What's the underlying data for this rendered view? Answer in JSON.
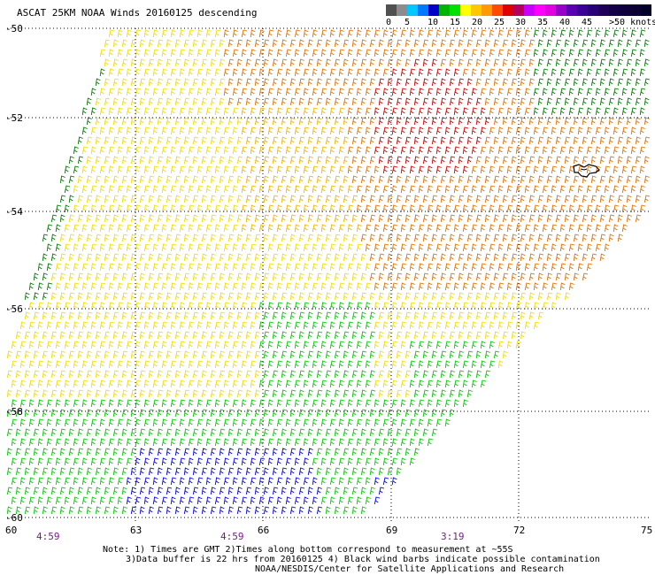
{
  "title": "ASCAT 25KM NOAA Winds 20160125 descending",
  "legend": {
    "labels": [
      "0",
      "5",
      "10",
      "15",
      "20",
      "25",
      "30",
      "35",
      "40",
      "45",
      ">50 knots"
    ],
    "colors": [
      "#505050",
      "#8c8c8c",
      "#00c8ff",
      "#0078ff",
      "#0000c8",
      "#00b400",
      "#00e100",
      "#ffff00",
      "#ffc800",
      "#ff9b00",
      "#ff4b00",
      "#e10000",
      "#b4005a",
      "#c800ff",
      "#ff00ff",
      "#e100e1",
      "#9600c8",
      "#5a00b4",
      "#3c0096",
      "#280078",
      "#1e005a",
      "#140046",
      "#0f003c",
      "#0a0032",
      "#000028"
    ]
  },
  "axes": {
    "lat_labels": [
      "-50",
      "-52",
      "-54",
      "-56",
      "-58",
      "-60"
    ],
    "lon_labels": [
      "60",
      "63",
      "66",
      "69",
      "72",
      "75"
    ],
    "time_labels": [
      "4:59",
      "4:59",
      "3:19"
    ]
  },
  "footnote": {
    "line1": "Note: 1) Times are GMT 2)Times along bottom correspond to measurement at ~55S",
    "line2": "3)Data buffer is 22 hrs from 20160125 4) Black wind barbs indicate possible contamination",
    "line3": "NOAA/NESDIS/Center for Satellite Applications and Research"
  },
  "colors": {
    "background": "#ffffff",
    "grid": "#000000",
    "barb_green_dark": "#007800",
    "barb_green": "#00c800",
    "barb_blue": "#0000e6",
    "barb_yellow": "#f0dc00",
    "barb_gold": "#f0b400",
    "barb_orange": "#e07000",
    "barb_red": "#c80000",
    "land": "#000000"
  }
}
